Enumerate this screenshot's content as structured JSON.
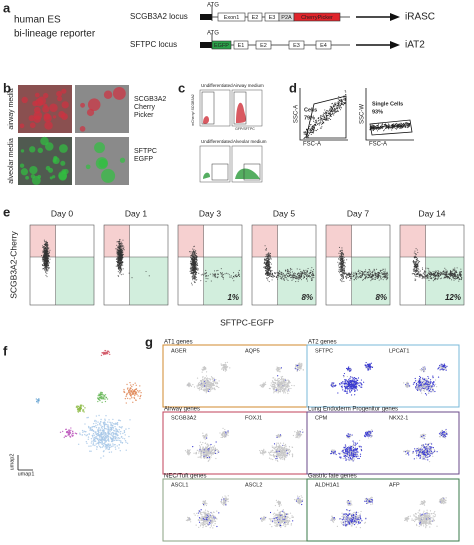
{
  "panel_a": {
    "label": "a",
    "title_lines": [
      "human ES",
      "bi-lineage reporter"
    ],
    "constructs": [
      {
        "locus": "SCGB3A2 locus",
        "start": "ATG",
        "elements": [
          "Exon1",
          "E2",
          "E3",
          "P2A",
          "CherryPicker"
        ],
        "output": "iRASC"
      },
      {
        "locus": "SFTPC locus",
        "start": "ATG",
        "elements": [
          "EGFP",
          "E1",
          "E2",
          "E3",
          "E4"
        ],
        "output": "iAT2"
      }
    ]
  },
  "panel_b": {
    "label": "b",
    "rows": [
      {
        "media": "airway media",
        "reporter_lines": [
          "SCGB3A2",
          "Cherry",
          "Picker"
        ]
      },
      {
        "media": "alveolar media",
        "reporter_lines": [
          "SFTPC",
          "EGFP"
        ]
      }
    ]
  },
  "panel_c": {
    "label": "c",
    "plots": [
      {
        "title": "Undifferentiated"
      },
      {
        "title": "Airway medium"
      },
      {
        "title": "Undifferentiated"
      },
      {
        "title": "Alveolar medium"
      }
    ],
    "x_label": "GFP/SFTPC",
    "y_label": "mCherry/ SCGB3A2"
  },
  "panel_d": {
    "label": "d",
    "plots": [
      {
        "y_label": "SSC-A",
        "x_label": "FSC-A",
        "gate": "Cells",
        "percent": "79%"
      },
      {
        "y_label": "SSC-W",
        "x_label": "FSC-A",
        "gate": "Single Cells",
        "percent": "93%"
      }
    ]
  },
  "panel_e": {
    "label": "e",
    "y_label": "SCGB3A2-Cherry",
    "x_label": "SFTPC-EGFP",
    "days": [
      {
        "day": "Day 0"
      },
      {
        "day": "Day 1"
      },
      {
        "day": "Day 3",
        "percent": "1%"
      },
      {
        "day": "Day 5",
        "percent": "8%"
      },
      {
        "day": "Day 7",
        "percent": "8%"
      },
      {
        "day": "Day 14",
        "percent": "12%"
      }
    ]
  },
  "panel_f": {
    "label": "f",
    "y_label": "umap2",
    "x_label": "umap1"
  },
  "panel_g": {
    "label": "g",
    "groups": [
      {
        "title": "AT1 genes",
        "genes": [
          "AGER",
          "AQP5"
        ]
      },
      {
        "title": "AT2 genes",
        "genes": [
          "SFTPC",
          "LPCAT1"
        ]
      },
      {
        "title": "Airway genes",
        "genes": [
          "SCGB3A2",
          "FOXJ1"
        ]
      },
      {
        "title": "Lung Endoderm Progenitor genes",
        "genes": [
          "CPM",
          "NKX2-1"
        ]
      },
      {
        "title": "NEC/Tuft genes",
        "genes": [
          "ASCL1",
          "ASCL2"
        ]
      },
      {
        "title": "Gastric fate genes",
        "genes": [
          "ALDH1A1",
          "AFP"
        ]
      }
    ]
  }
}
